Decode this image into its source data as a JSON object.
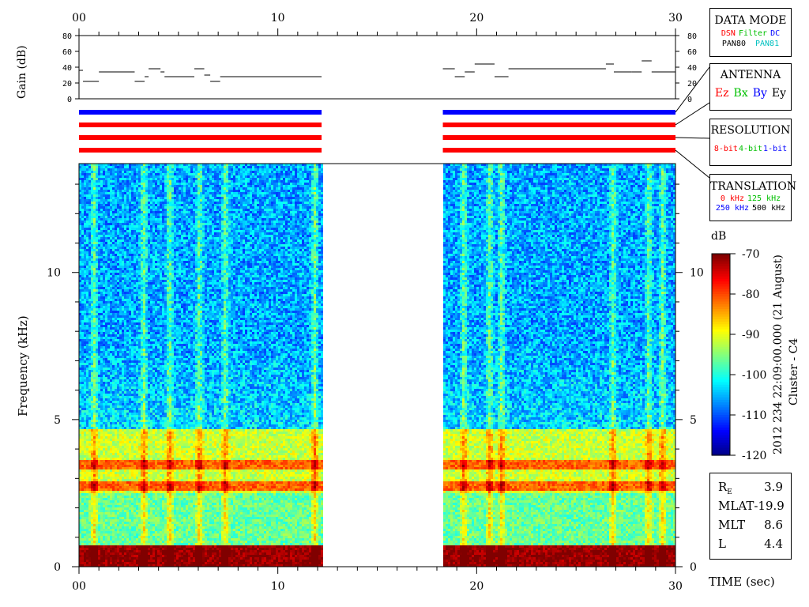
{
  "chart_data": {
    "type": "heatmap",
    "xlabel": "TIME (sec)",
    "ylabel": "Frequency (kHz)",
    "x_ticks": [
      "00",
      "10",
      "20",
      "30"
    ],
    "y_ticks": [
      "0",
      "5",
      "10"
    ],
    "xlim": [
      0,
      30
    ],
    "ylim": [
      0,
      13.7
    ],
    "data_segments_sec": [
      [
        0,
        12.2
      ],
      [
        18.3,
        30
      ]
    ],
    "colorbar": {
      "label": "dB",
      "ticks": [
        "-70",
        "-80",
        "-90",
        "-100",
        "-110",
        "-120"
      ],
      "range": [
        -120,
        -70
      ],
      "colormap": "jet"
    },
    "gain_panel": {
      "ylabel": "Gain (dB)",
      "y_ticks": [
        "0",
        "20",
        "40",
        "60",
        "80"
      ],
      "steps_segment1": [
        [
          0,
          0.2,
          36
        ],
        [
          0.2,
          1,
          22
        ],
        [
          1,
          2.8,
          34
        ],
        [
          2.8,
          3.3,
          22
        ],
        [
          3.3,
          3.5,
          28
        ],
        [
          3.5,
          4.1,
          38
        ],
        [
          4.1,
          4.3,
          34
        ],
        [
          4.3,
          5.8,
          28
        ],
        [
          5.8,
          6.3,
          38
        ],
        [
          6.3,
          6.6,
          30
        ],
        [
          6.6,
          7.1,
          22
        ],
        [
          7.1,
          12.2,
          28
        ]
      ],
      "steps_segment2": [
        [
          18.3,
          18.9,
          38
        ],
        [
          18.9,
          19.4,
          28
        ],
        [
          19.4,
          19.9,
          34
        ],
        [
          19.9,
          20.9,
          44
        ],
        [
          20.9,
          21.6,
          28
        ],
        [
          21.6,
          26.5,
          38
        ],
        [
          26.5,
          26.9,
          44
        ],
        [
          26.9,
          27.8,
          34
        ],
        [
          27.8,
          28.3,
          34
        ],
        [
          28.3,
          28.8,
          48
        ],
        [
          28.8,
          30,
          34
        ]
      ]
    },
    "mode_bars": {
      "colors": [
        "#0000ff",
        "#ff0000",
        "#ff0000",
        "#ff0000"
      ]
    },
    "spectral_features": {
      "band_top_khz": 4.7,
      "lines_khz": [
        0.4,
        2.8,
        3.5
      ],
      "vertical_stripes_sec_segment1": [
        0.7,
        3.2,
        4.5,
        6.0,
        7.3,
        11.8
      ],
      "vertical_stripes_sec_segment2": [
        19.3,
        20.6,
        21.2,
        26.8,
        28.6,
        29.3
      ]
    }
  },
  "panels": {
    "data_mode": {
      "title": "DATA MODE",
      "items": [
        {
          "label": "DSN",
          "color": "#ff0000"
        },
        {
          "label": "Filter",
          "color": "#00c000"
        },
        {
          "label": "DC",
          "color": "#0000ff"
        },
        {
          "label": "PAN80",
          "color": "#000000"
        },
        {
          "label": "PAN81",
          "color": "#00c0c0"
        }
      ]
    },
    "antenna": {
      "title": "ANTENNA",
      "items": [
        {
          "label": "Ez",
          "color": "#ff0000"
        },
        {
          "label": "Bx",
          "color": "#00c000"
        },
        {
          "label": "By",
          "color": "#0000ff"
        },
        {
          "label": "Ey",
          "color": "#000000"
        }
      ]
    },
    "resolution": {
      "title": "RESOLUTION",
      "items": [
        {
          "label": "8-bit",
          "color": "#ff0000"
        },
        {
          "label": "4-bit",
          "color": "#00c000"
        },
        {
          "label": "1-bit",
          "color": "#0000ff"
        }
      ]
    },
    "translation": {
      "title": "TRANSLATION",
      "items": [
        {
          "label": "0 kHz",
          "color": "#ff0000"
        },
        {
          "label": "125 kHz",
          "color": "#00c000"
        },
        {
          "label": "250 kHz",
          "color": "#0000ff"
        },
        {
          "label": "500 kHz",
          "color": "#000000"
        }
      ]
    },
    "orbit_info": [
      {
        "key": "R",
        "sub": "E",
        "value": "3.9"
      },
      {
        "key": "MLAT",
        "sub": "",
        "value": "-19.9"
      },
      {
        "key": "MLT",
        "sub": "",
        "value": "8.6"
      },
      {
        "key": "L",
        "sub": "",
        "value": "4.4"
      }
    ],
    "side_caption": {
      "line1": "2012 234 22:09:00.000 (21 August)",
      "line2": "Cluster - C4"
    }
  }
}
